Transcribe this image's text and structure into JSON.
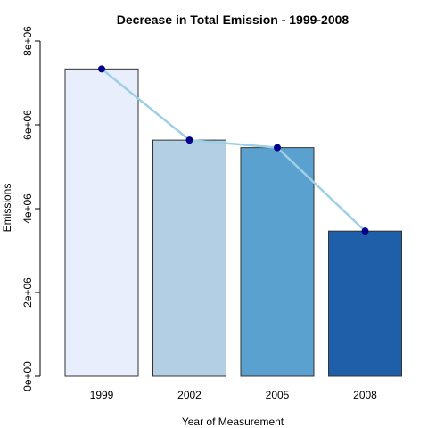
{
  "chart_data": {
    "type": "bar",
    "title": "Decrease in Total Emission - 1999-2008",
    "xlabel": "Year of Measurement",
    "ylabel": "Emissions",
    "categories": [
      "1999",
      "2002",
      "2005",
      "2008"
    ],
    "values": [
      7332967,
      5635780,
      5454703,
      3464206
    ],
    "ylim": [
      0,
      8000000
    ],
    "yticks": [
      0,
      2000000,
      4000000,
      6000000,
      8000000
    ],
    "ytick_labels": [
      "0e+00",
      "2e+06",
      "4e+06",
      "6e+06",
      "8e+06"
    ],
    "bar_colors": [
      "#e8eefc",
      "#b2cfe3",
      "#5ba1cf",
      "#1f5faa"
    ],
    "bar_border_color": "#333333",
    "overlay": {
      "type": "line",
      "values": [
        7332967,
        5635780,
        5454703,
        3464206
      ],
      "line_color": "#9ecfe4",
      "point_color": "#00008b"
    },
    "grid": false,
    "legend": "none"
  }
}
